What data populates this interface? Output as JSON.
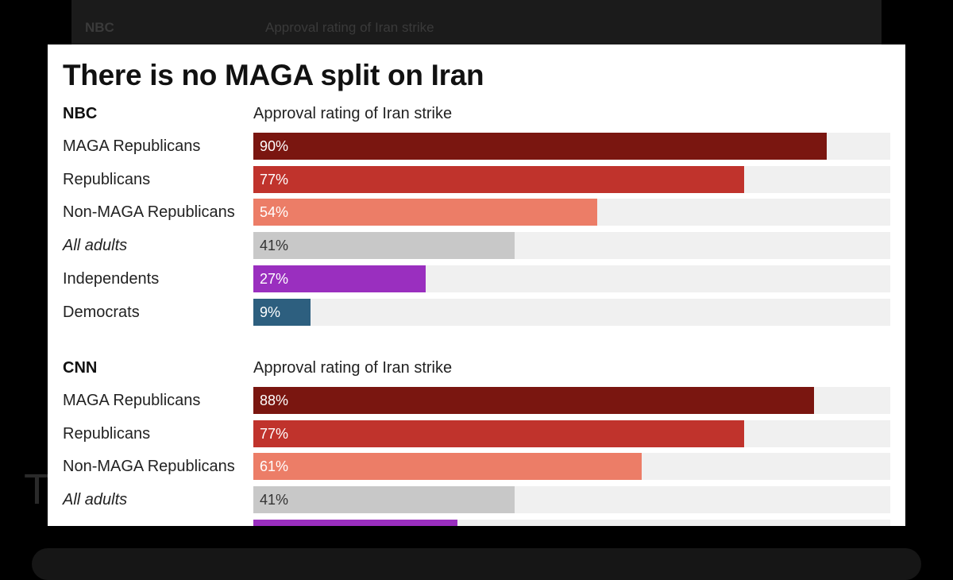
{
  "background": {
    "faded_source": "NBC",
    "faded_subtitle": "Approval rating of Iran strike",
    "faded_letter": "T"
  },
  "title": "There is no MAGA split on Iran",
  "chart_data": [
    {
      "type": "bar",
      "orientation": "horizontal",
      "source": "NBC",
      "subtitle": "Approval rating of Iran strike",
      "xlim": [
        0,
        100
      ],
      "categories": [
        "MAGA Republicans",
        "Republicans",
        "Non-MAGA Republicans",
        "All adults",
        "Independents",
        "Democrats"
      ],
      "values": [
        90,
        77,
        54,
        41,
        27,
        9
      ],
      "labels": [
        "90%",
        "77%",
        "54%",
        "41%",
        "27%",
        "9%"
      ],
      "italic": [
        false,
        false,
        false,
        true,
        false,
        false
      ],
      "colors": [
        "#7a1610",
        "#c0332c",
        "#ec7d67",
        "#c8c8c8",
        "#9a2fbf",
        "#2d5f7f"
      ]
    },
    {
      "type": "bar",
      "orientation": "horizontal",
      "source": "CNN",
      "subtitle": "Approval rating of Iran strike",
      "xlim": [
        0,
        100
      ],
      "categories": [
        "MAGA Republicans",
        "Republicans",
        "Non-MAGA Republicans",
        "All adults",
        ""
      ],
      "values": [
        88,
        77,
        61,
        41,
        32
      ],
      "labels": [
        "88%",
        "77%",
        "61%",
        "41%",
        ""
      ],
      "italic": [
        false,
        false,
        false,
        true,
        false
      ],
      "colors": [
        "#7a1610",
        "#c0332c",
        "#ec7d67",
        "#c8c8c8",
        "#9a2fbf"
      ]
    }
  ]
}
